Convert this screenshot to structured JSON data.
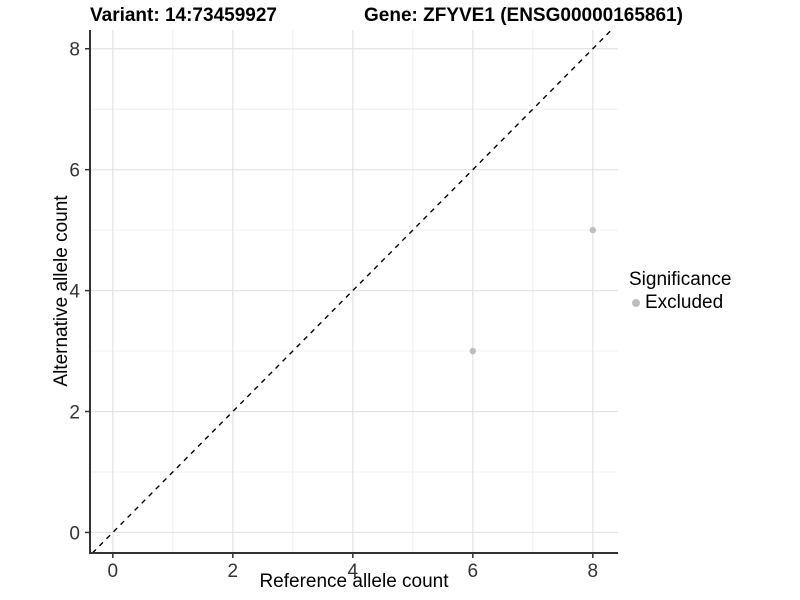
{
  "titles": {
    "variant": "Variant: 14:73459927",
    "gene": "Gene: ZFYVE1 (ENSG00000165861)"
  },
  "legend": {
    "title": "Significance",
    "items": [
      {
        "label": "Excluded",
        "color": "#bebebe"
      }
    ]
  },
  "colors": {
    "background": "#ffffff",
    "grid_major": "#e3e3e3",
    "grid_minor": "#f0f0f0",
    "axis_line": "#333333",
    "tick_label": "#333333",
    "point": "#bebebe",
    "identity_line": "#000000"
  },
  "chart_data": {
    "type": "scatter",
    "title": "",
    "xlabel": "Reference allele count",
    "ylabel": "Alternative allele count",
    "xlim": [
      -0.38,
      8.42
    ],
    "ylim": [
      -0.34,
      8.31
    ],
    "xticks": [
      0,
      2,
      4,
      6,
      8
    ],
    "yticks": [
      0,
      2,
      4,
      6,
      8
    ],
    "minor_xticks": [
      1,
      3,
      5,
      7
    ],
    "minor_yticks": [
      1,
      3,
      5,
      7
    ],
    "grid": "major+minor",
    "legend_position": "right",
    "series": [
      {
        "name": "Excluded",
        "color": "#bebebe",
        "marker": "circle",
        "points": [
          [
            6,
            3
          ],
          [
            8,
            5
          ]
        ]
      }
    ],
    "identity_line": {
      "slope": 1,
      "intercept": 0,
      "style": "dashed",
      "color": "#000000"
    }
  }
}
